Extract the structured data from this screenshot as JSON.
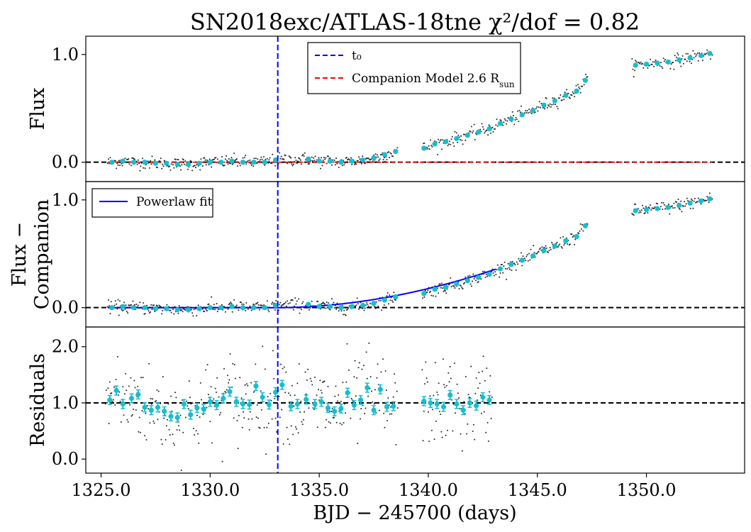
{
  "colors": {
    "binned": "#17becf",
    "raw": "#222222",
    "t0_line": "#0000ff",
    "companion_line": "#ff0000",
    "powerlaw_line": "#0000ff",
    "zero_line": "#000000"
  },
  "chart_data": {
    "type": "scatter",
    "title": "SN2018exc/ATLAS-18tne  χ²/dof = 0.82",
    "xlabel": "BJD − 245700 (days)",
    "xlim": [
      1324.3,
      1354.5
    ],
    "xticks": [
      1325.0,
      1330.0,
      1335.0,
      1340.0,
      1345.0,
      1350.0
    ],
    "xtick_labels": [
      "1325.0",
      "1330.0",
      "1335.0",
      "1340.0",
      "1345.0",
      "1350.0"
    ],
    "t0": 1333.1,
    "data_gaps": [
      [
        1338.6,
        1339.7
      ],
      [
        1347.3,
        1349.3
      ]
    ],
    "panels": [
      {
        "id": "flux",
        "ylabel": "Flux",
        "ylabel_lines": [
          "Flux"
        ],
        "ylim": [
          -0.18,
          1.17
        ],
        "yticks": [
          0.0,
          1.0
        ],
        "ytick_labels": [
          "0.0",
          "1.0"
        ],
        "hline": 0.0,
        "legend": {
          "position": "upper-center",
          "entries": [
            {
              "label": "t₀",
              "color": "#0000ff",
              "style": "dashed"
            },
            {
              "label": "Companion Model  2.6  R",
              "sub": "sun",
              "color": "#ff0000",
              "style": "dashed"
            }
          ]
        },
        "companion_model": {
          "x": [
            1325.3,
            1353.0
          ],
          "y": [
            0.0,
            0.0
          ]
        },
        "binned": {
          "x": [
            1325.5,
            1326.0,
            1326.5,
            1327.0,
            1327.5,
            1328.0,
            1328.5,
            1329.0,
            1329.5,
            1330.0,
            1330.5,
            1331.0,
            1331.5,
            1332.0,
            1332.5,
            1333.0,
            1334.5,
            1335.0,
            1335.5,
            1336.0,
            1336.5,
            1337.0,
            1337.5,
            1338.0,
            1338.5,
            1339.8,
            1340.3,
            1340.8,
            1341.3,
            1341.8,
            1342.3,
            1342.8,
            1343.3,
            1343.8,
            1344.3,
            1344.8,
            1345.3,
            1345.8,
            1346.3,
            1346.8,
            1347.2,
            1349.5,
            1350.0,
            1350.5,
            1351.0,
            1351.5,
            1352.0,
            1352.5,
            1352.9
          ],
          "y": [
            0.0,
            0.01,
            0.0,
            0.0,
            -0.01,
            -0.01,
            -0.02,
            -0.02,
            -0.01,
            0.0,
            0.0,
            0.01,
            0.0,
            0.0,
            0.0,
            0.02,
            0.03,
            0.01,
            0.01,
            0.0,
            0.01,
            0.02,
            0.04,
            0.07,
            0.1,
            0.13,
            0.17,
            0.19,
            0.22,
            0.25,
            0.28,
            0.31,
            0.36,
            0.4,
            0.44,
            0.48,
            0.53,
            0.57,
            0.62,
            0.66,
            0.76,
            0.9,
            0.91,
            0.92,
            0.93,
            0.95,
            0.97,
            0.99,
            1.01
          ]
        }
      },
      {
        "id": "flux-minus-companion",
        "ylabel": "Flux − Companion",
        "ylabel_lines": [
          "Flux −",
          "Companion"
        ],
        "ylim": [
          -0.18,
          1.17
        ],
        "yticks": [
          0.0,
          1.0
        ],
        "ytick_labels": [
          "0.0",
          "1.0"
        ],
        "hline": 0.0,
        "legend": {
          "position": "upper-left",
          "entries": [
            {
              "label": "Powerlaw fit",
              "color": "#0000ff",
              "style": "solid"
            }
          ]
        },
        "powerlaw_fit": {
          "t0": 1333.1,
          "x_end": 1343.1,
          "amplitude": 0.0045,
          "index": 1.9
        },
        "binned": {
          "x": [
            1325.5,
            1326.0,
            1326.5,
            1327.0,
            1327.5,
            1328.0,
            1328.5,
            1329.0,
            1329.5,
            1330.0,
            1330.5,
            1331.0,
            1331.5,
            1332.0,
            1332.5,
            1333.0,
            1334.5,
            1335.0,
            1335.5,
            1336.0,
            1336.5,
            1337.0,
            1337.5,
            1338.0,
            1338.5,
            1339.8,
            1340.3,
            1340.8,
            1341.3,
            1341.8,
            1342.3,
            1342.8,
            1343.3,
            1343.8,
            1344.3,
            1344.8,
            1345.3,
            1345.8,
            1346.3,
            1346.8,
            1347.2,
            1349.5,
            1350.0,
            1350.5,
            1351.0,
            1351.5,
            1352.0,
            1352.5,
            1352.9
          ],
          "y": [
            0.0,
            0.01,
            0.0,
            0.0,
            -0.01,
            -0.01,
            -0.02,
            -0.02,
            -0.01,
            0.0,
            0.0,
            0.01,
            0.0,
            0.0,
            0.0,
            0.02,
            0.03,
            0.01,
            0.01,
            0.0,
            0.01,
            0.02,
            0.04,
            0.07,
            0.1,
            0.13,
            0.17,
            0.19,
            0.22,
            0.25,
            0.28,
            0.31,
            0.36,
            0.4,
            0.44,
            0.48,
            0.53,
            0.57,
            0.62,
            0.66,
            0.76,
            0.9,
            0.91,
            0.92,
            0.93,
            0.95,
            0.97,
            0.99,
            1.01
          ]
        }
      },
      {
        "id": "residuals",
        "ylabel": "Residuals",
        "ylabel_lines": [
          "Residuals"
        ],
        "ylim": [
          -0.25,
          2.35
        ],
        "yticks": [
          0.0,
          1.0,
          2.0
        ],
        "ytick_labels": [
          "0.0",
          "1.0",
          "2.0"
        ],
        "hline": 1.0,
        "binned": {
          "x": [
            1325.4,
            1325.7,
            1326.0,
            1326.4,
            1326.7,
            1327.0,
            1327.3,
            1327.6,
            1327.9,
            1328.2,
            1328.5,
            1328.8,
            1329.1,
            1329.4,
            1329.7,
            1330.0,
            1330.3,
            1330.6,
            1330.9,
            1331.2,
            1331.5,
            1331.8,
            1332.1,
            1332.4,
            1332.7,
            1333.0,
            1333.3,
            1333.7,
            1334.0,
            1334.4,
            1334.8,
            1335.1,
            1335.4,
            1335.7,
            1336.0,
            1336.3,
            1336.6,
            1336.9,
            1337.2,
            1337.5,
            1337.8,
            1338.1,
            1338.4,
            1339.8,
            1340.1,
            1340.4,
            1340.7,
            1341.0,
            1341.3,
            1341.6,
            1341.9,
            1342.2,
            1342.5,
            1342.8
          ],
          "y": [
            1.05,
            1.22,
            0.98,
            1.08,
            1.15,
            0.92,
            0.87,
            0.92,
            0.85,
            0.76,
            0.74,
            0.98,
            0.79,
            0.91,
            0.89,
            1.02,
            0.96,
            1.08,
            1.2,
            1.02,
            0.98,
            0.97,
            1.3,
            1.1,
            0.97,
            1.19,
            1.32,
            0.94,
            0.98,
            1.06,
            0.98,
            1.02,
            0.91,
            0.85,
            0.9,
            1.18,
            0.96,
            1.05,
            1.27,
            0.87,
            1.24,
            0.93,
            0.94,
            1.03,
            1.0,
            0.98,
            0.93,
            1.14,
            0.98,
            0.87,
            1.0,
            0.95,
            1.1,
            1.05
          ],
          "yerr": 0.08
        }
      }
    ]
  }
}
